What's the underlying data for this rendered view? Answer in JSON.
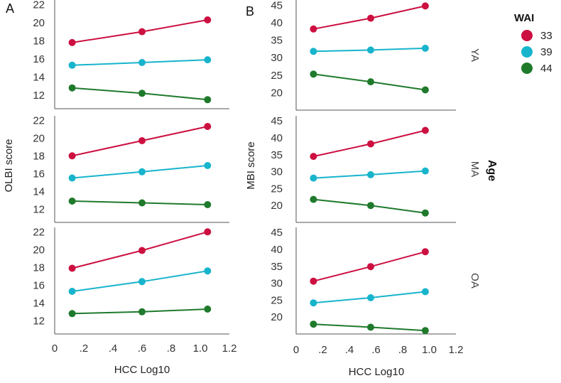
{
  "chart_data": [
    {
      "type": "line",
      "panel_label": "A",
      "xlabel": "HCC Log10",
      "ylabel": "OLBI score",
      "x_ticks": [
        "0",
        ".2",
        ".4",
        ".6",
        ".8",
        "1.0",
        "1.2"
      ],
      "xlim": [
        0,
        1.2
      ],
      "y_ticks": [
        "12",
        "14",
        "16",
        "18",
        "20",
        "22"
      ],
      "ylim": [
        10.5,
        22.5
      ],
      "x": [
        0.12,
        0.6,
        1.05
      ],
      "facets": [
        {
          "row": "YA",
          "series": [
            {
              "name": "33",
              "values": [
                17.8,
                19.0,
                20.3
              ]
            },
            {
              "name": "39",
              "values": [
                15.3,
                15.6,
                15.9
              ]
            },
            {
              "name": "44",
              "values": [
                12.8,
                12.2,
                11.5
              ]
            }
          ]
        },
        {
          "row": "MA",
          "series": [
            {
              "name": "33",
              "values": [
                18.0,
                19.7,
                21.3
              ]
            },
            {
              "name": "39",
              "values": [
                15.5,
                16.2,
                16.9
              ]
            },
            {
              "name": "44",
              "values": [
                12.9,
                12.7,
                12.5
              ]
            }
          ]
        },
        {
          "row": "OA",
          "series": [
            {
              "name": "33",
              "values": [
                17.9,
                19.9,
                22.0
              ]
            },
            {
              "name": "39",
              "values": [
                15.3,
                16.4,
                17.6
              ]
            },
            {
              "name": "44",
              "values": [
                12.8,
                13.0,
                13.3
              ]
            }
          ]
        }
      ]
    },
    {
      "type": "line",
      "panel_label": "B",
      "xlabel": "HCC Log10",
      "ylabel": "MBI score",
      "x_ticks": [
        "0",
        ".2",
        ".4",
        ".6",
        ".8",
        "1.0",
        "1.2"
      ],
      "xlim": [
        0,
        1.2
      ],
      "y_ticks": [
        "20",
        "25",
        "30",
        "35",
        "40",
        "45"
      ],
      "ylim": [
        15,
        46.5
      ],
      "x": [
        0.13,
        0.56,
        0.97
      ],
      "facets": [
        {
          "row": "YA",
          "series": [
            {
              "name": "33",
              "values": [
                38.2,
                41.3,
                44.8
              ]
            },
            {
              "name": "39",
              "values": [
                31.8,
                32.2,
                32.7
              ]
            },
            {
              "name": "44",
              "values": [
                25.3,
                23.1,
                20.8
              ]
            }
          ]
        },
        {
          "row": "MA",
          "series": [
            {
              "name": "33",
              "values": [
                34.5,
                38.2,
                42.2
              ]
            },
            {
              "name": "39",
              "values": [
                28.1,
                29.1,
                30.2
              ]
            },
            {
              "name": "44",
              "values": [
                21.8,
                20.0,
                17.8
              ]
            }
          ]
        },
        {
          "row": "OA",
          "series": [
            {
              "name": "33",
              "values": [
                30.6,
                34.9,
                39.3
              ]
            },
            {
              "name": "39",
              "values": [
                24.2,
                25.7,
                27.5
              ]
            },
            {
              "name": "44",
              "values": [
                17.9,
                17.0,
                16.0
              ]
            }
          ]
        }
      ]
    }
  ],
  "legend": {
    "title": "WAI",
    "items": [
      {
        "label": "33",
        "color": "#cc1040"
      },
      {
        "label": "39",
        "color": "#18b4cc"
      },
      {
        "label": "44",
        "color": "#1f7a2c"
      }
    ]
  },
  "facet_title": "Age"
}
